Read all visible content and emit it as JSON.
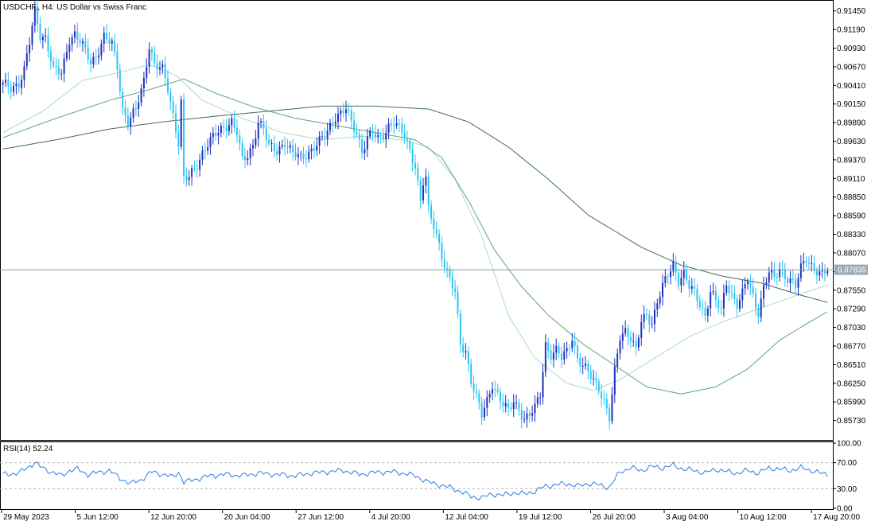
{
  "header": {
    "symbol_label": "USDCHF., H4:  US Dollar vs Swiss Franc"
  },
  "indicator": {
    "label": "RSI(14) 52.24"
  },
  "current_price_label": "0.87835",
  "colors": {
    "bull_candle": "#1e2fbf",
    "bear_candle": "#29c5f6",
    "ma_fast": "#a8dcc4",
    "ma_medium": "#5fa378",
    "ma_slow": "#3e6e52",
    "rsi_line": "#2a7fe0",
    "price_line": "#7fa5a0",
    "price_label_bg": "#9aa9b6"
  },
  "chart_data": [
    {
      "type": "candlestick",
      "symbol": "USDCHF.",
      "timeframe": "H4",
      "ylim": [
        0.8547,
        0.9158
      ],
      "y_ticks": [
        "0.91450",
        "0.91190",
        "0.90930",
        "0.90670",
        "0.90410",
        "0.90150",
        "0.89890",
        "0.89630",
        "0.89370",
        "0.89110",
        "0.88850",
        "0.88590",
        "0.88330",
        "0.88070",
        "0.87810",
        "0.87550",
        "0.87290",
        "0.87030",
        "0.86770",
        "0.86510",
        "0.86250",
        "0.85990",
        "0.85730"
      ],
      "x_ticks": [
        {
          "label": "29 May 2023",
          "pos": 0.0
        },
        {
          "label": "5 Jun 12:00",
          "pos": 0.089
        },
        {
          "label": "12 Jun 20:00",
          "pos": 0.178
        },
        {
          "label": "20 Jun 04:00",
          "pos": 0.267
        },
        {
          "label": "27 Jun 12:00",
          "pos": 0.356
        },
        {
          "label": "4 Jul 20:00",
          "pos": 0.445
        },
        {
          "label": "12 Jul 04:00",
          "pos": 0.534
        },
        {
          "label": "19 Jul 12:00",
          "pos": 0.623
        },
        {
          "label": "26 Jul 20:00",
          "pos": 0.712
        },
        {
          "label": "3 Aug 04:00",
          "pos": 0.801
        },
        {
          "label": "10 Aug 12:00",
          "pos": 0.89
        },
        {
          "label": "17 Aug 20:00",
          "pos": 0.979
        }
      ],
      "current_price": 0.87835,
      "close_anchors": [
        [
          0,
          0.9042
        ],
        [
          3,
          0.9038
        ],
        [
          6,
          0.9044
        ],
        [
          8,
          0.9062
        ],
        [
          10,
          0.91
        ],
        [
          12,
          0.9145
        ],
        [
          14,
          0.9112
        ],
        [
          16,
          0.9108
        ],
        [
          19,
          0.9062
        ],
        [
          22,
          0.9058
        ],
        [
          25,
          0.9106
        ],
        [
          27,
          0.9112
        ],
        [
          30,
          0.9096
        ],
        [
          33,
          0.9074
        ],
        [
          35,
          0.9082
        ],
        [
          38,
          0.9108
        ],
        [
          41,
          0.9098
        ],
        [
          43,
          0.9068
        ],
        [
          45,
          0.9008
        ],
        [
          47,
          0.899
        ],
        [
          50,
          0.9006
        ],
        [
          53,
          0.9048
        ],
        [
          55,
          0.9098
        ],
        [
          57,
          0.907
        ],
        [
          60,
          0.9062
        ],
        [
          62,
          0.9036
        ],
        [
          64,
          0.9
        ],
        [
          66,
          0.8962
        ],
        [
          67,
          0.9018
        ],
        [
          68,
          0.891
        ],
        [
          70,
          0.8912
        ],
        [
          73,
          0.893
        ],
        [
          75,
          0.8948
        ],
        [
          77,
          0.896
        ],
        [
          80,
          0.8972
        ],
        [
          83,
          0.8982
        ],
        [
          86,
          0.8992
        ],
        [
          88,
          0.8975
        ],
        [
          90,
          0.8935
        ],
        [
          92,
          0.8942
        ],
        [
          94,
          0.8958
        ],
        [
          96,
          0.8992
        ],
        [
          98,
          0.898
        ],
        [
          100,
          0.8955
        ],
        [
          103,
          0.895
        ],
        [
          106,
          0.8962
        ],
        [
          109,
          0.8945
        ],
        [
          112,
          0.894
        ],
        [
          115,
          0.8948
        ],
        [
          118,
          0.8958
        ],
        [
          121,
          0.897
        ],
        [
          123,
          0.8985
        ],
        [
          125,
          0.8998
        ],
        [
          127,
          0.9002
        ],
        [
          129,
          0.9008
        ],
        [
          131,
          0.8988
        ],
        [
          133,
          0.8975
        ],
        [
          135,
          0.895
        ],
        [
          137,
          0.8968
        ],
        [
          139,
          0.8975
        ],
        [
          141,
          0.8965
        ],
        [
          143,
          0.8972
        ],
        [
          145,
          0.8985
        ],
        [
          147,
          0.899
        ],
        [
          149,
          0.898
        ],
        [
          151,
          0.897
        ],
        [
          153,
          0.895
        ],
        [
          155,
          0.893
        ],
        [
          157,
          0.888
        ],
        [
          158,
          0.8905
        ],
        [
          159,
          0.891
        ],
        [
          160,
          0.8865
        ],
        [
          162,
          0.8845
        ],
        [
          164,
          0.882
        ],
        [
          166,
          0.879
        ],
        [
          168,
          0.877
        ],
        [
          170,
          0.875
        ],
        [
          172,
          0.868
        ],
        [
          174,
          0.867
        ],
        [
          176,
          0.863
        ],
        [
          178,
          0.8605
        ],
        [
          180,
          0.858
        ],
        [
          182,
          0.86
        ],
        [
          184,
          0.8625
        ],
        [
          186,
          0.861
        ],
        [
          188,
          0.8595
        ],
        [
          190,
          0.8585
        ],
        [
          192,
          0.86
        ],
        [
          194,
          0.859
        ],
        [
          196,
          0.8575
        ],
        [
          198,
          0.858
        ],
        [
          200,
          0.859
        ],
        [
          202,
          0.861
        ],
        [
          204,
          0.868
        ],
        [
          206,
          0.8665
        ],
        [
          208,
          0.867
        ],
        [
          210,
          0.866
        ],
        [
          212,
          0.867
        ],
        [
          214,
          0.869
        ],
        [
          216,
          0.866
        ],
        [
          218,
          0.8648
        ],
        [
          220,
          0.864
        ],
        [
          222,
          0.863
        ],
        [
          224,
          0.862
        ],
        [
          226,
          0.86
        ],
        [
          228,
          0.8575
        ],
        [
          230,
          0.864
        ],
        [
          232,
          0.869
        ],
        [
          234,
          0.87
        ],
        [
          236,
          0.869
        ],
        [
          238,
          0.867
        ],
        [
          240,
          0.871
        ],
        [
          242,
          0.872
        ],
        [
          244,
          0.871
        ],
        [
          246,
          0.874
        ],
        [
          248,
          0.876
        ],
        [
          250,
          0.8775
        ],
        [
          252,
          0.879
        ],
        [
          254,
          0.877
        ],
        [
          256,
          0.878
        ],
        [
          258,
          0.876
        ],
        [
          260,
          0.875
        ],
        [
          262,
          0.8735
        ],
        [
          264,
          0.872
        ],
        [
          266,
          0.8755
        ],
        [
          268,
          0.874
        ],
        [
          270,
          0.8725
        ],
        [
          272,
          0.8765
        ],
        [
          274,
          0.875
        ],
        [
          276,
          0.8735
        ],
        [
          278,
          0.875
        ],
        [
          280,
          0.877
        ],
        [
          282,
          0.8745
        ],
        [
          284,
          0.8725
        ],
        [
          286,
          0.876
        ],
        [
          288,
          0.878
        ],
        [
          290,
          0.877
        ],
        [
          292,
          0.8785
        ],
        [
          294,
          0.8775
        ],
        [
          296,
          0.877
        ],
        [
          298,
          0.876
        ],
        [
          300,
          0.8785
        ],
        [
          302,
          0.88
        ],
        [
          304,
          0.879
        ],
        [
          306,
          0.8782
        ],
        [
          308,
          0.8775
        ],
        [
          310,
          0.8783
        ]
      ],
      "candle_count": 311,
      "moving_averages": [
        {
          "kind": "fast",
          "color_key": "ma_fast",
          "points": [
            [
              0,
              0.8975
            ],
            [
              15,
              0.9005
            ],
            [
              30,
              0.9048
            ],
            [
              45,
              0.906
            ],
            [
              55,
              0.907
            ],
            [
              65,
              0.9055
            ],
            [
              75,
              0.902
            ],
            [
              90,
              0.8995
            ],
            [
              105,
              0.8975
            ],
            [
              120,
              0.8965
            ],
            [
              135,
              0.897
            ],
            [
              150,
              0.8965
            ],
            [
              160,
              0.8955
            ],
            [
              170,
              0.891
            ],
            [
              180,
              0.883
            ],
            [
              190,
              0.872
            ],
            [
              200,
              0.866
            ],
            [
              212,
              0.8625
            ],
            [
              222,
              0.8615
            ],
            [
              232,
              0.863
            ],
            [
              245,
              0.866
            ],
            [
              258,
              0.869
            ],
            [
              270,
              0.871
            ],
            [
              285,
              0.873
            ],
            [
              300,
              0.875
            ],
            [
              310,
              0.8762
            ]
          ]
        },
        {
          "kind": "medium",
          "color_key": "ma_medium",
          "points": [
            [
              0,
              0.8968
            ],
            [
              20,
              0.8995
            ],
            [
              40,
              0.902
            ],
            [
              55,
              0.9035
            ],
            [
              68,
              0.905
            ],
            [
              80,
              0.903
            ],
            [
              95,
              0.901
            ],
            [
              110,
              0.8995
            ],
            [
              125,
              0.8985
            ],
            [
              140,
              0.8975
            ],
            [
              155,
              0.8965
            ],
            [
              165,
              0.894
            ],
            [
              175,
              0.888
            ],
            [
              185,
              0.881
            ],
            [
              195,
              0.876
            ],
            [
              205,
              0.872
            ],
            [
              218,
              0.868
            ],
            [
              230,
              0.865
            ],
            [
              242,
              0.862
            ],
            [
              255,
              0.861
            ],
            [
              268,
              0.862
            ],
            [
              280,
              0.8645
            ],
            [
              292,
              0.8685
            ],
            [
              303,
              0.871
            ],
            [
              310,
              0.8725
            ]
          ]
        },
        {
          "kind": "slow",
          "color_key": "ma_slow",
          "points": [
            [
              0,
              0.8952
            ],
            [
              20,
              0.8965
            ],
            [
              40,
              0.898
            ],
            [
              60,
              0.899
            ],
            [
              80,
              0.8998
            ],
            [
              100,
              0.9005
            ],
            [
              120,
              0.9012
            ],
            [
              140,
              0.9012
            ],
            [
              160,
              0.9008
            ],
            [
              175,
              0.899
            ],
            [
              190,
              0.8955
            ],
            [
              205,
              0.891
            ],
            [
              220,
              0.886
            ],
            [
              240,
              0.8815
            ],
            [
              255,
              0.879
            ],
            [
              270,
              0.8775
            ],
            [
              285,
              0.8765
            ],
            [
              300,
              0.8748
            ],
            [
              310,
              0.8738
            ]
          ]
        }
      ]
    },
    {
      "type": "line",
      "name": "RSI(14)",
      "ylim": [
        0,
        100
      ],
      "y_ticks": [
        "100.00",
        "70.00",
        "30.00",
        "0.00"
      ],
      "levels": [
        70,
        30
      ],
      "points": [
        [
          0,
          52
        ],
        [
          6,
          54
        ],
        [
          9,
          62
        ],
        [
          12,
          70
        ],
        [
          14,
          64
        ],
        [
          18,
          56
        ],
        [
          22,
          50
        ],
        [
          25,
          58
        ],
        [
          28,
          60
        ],
        [
          32,
          52
        ],
        [
          36,
          55
        ],
        [
          40,
          58
        ],
        [
          44,
          46
        ],
        [
          48,
          38
        ],
        [
          52,
          44
        ],
        [
          56,
          56
        ],
        [
          60,
          52
        ],
        [
          64,
          48
        ],
        [
          66,
          56
        ],
        [
          68,
          40
        ],
        [
          72,
          44
        ],
        [
          78,
          50
        ],
        [
          84,
          52
        ],
        [
          90,
          50
        ],
        [
          96,
          54
        ],
        [
          102,
          52
        ],
        [
          110,
          50
        ],
        [
          116,
          54
        ],
        [
          122,
          56
        ],
        [
          128,
          58
        ],
        [
          134,
          52
        ],
        [
          140,
          55
        ],
        [
          146,
          56
        ],
        [
          152,
          53
        ],
        [
          156,
          48
        ],
        [
          160,
          40
        ],
        [
          164,
          36
        ],
        [
          168,
          32
        ],
        [
          172,
          26
        ],
        [
          176,
          18
        ],
        [
          180,
          16
        ],
        [
          184,
          22
        ],
        [
          188,
          20
        ],
        [
          192,
          24
        ],
        [
          196,
          22
        ],
        [
          200,
          26
        ],
        [
          204,
          34
        ],
        [
          208,
          36
        ],
        [
          212,
          38
        ],
        [
          216,
          34
        ],
        [
          220,
          38
        ],
        [
          224,
          36
        ],
        [
          228,
          32
        ],
        [
          232,
          56
        ],
        [
          236,
          62
        ],
        [
          240,
          58
        ],
        [
          244,
          64
        ],
        [
          248,
          62
        ],
        [
          252,
          66
        ],
        [
          256,
          60
        ],
        [
          260,
          58
        ],
        [
          264,
          54
        ],
        [
          268,
          60
        ],
        [
          272,
          56
        ],
        [
          276,
          54
        ],
        [
          280,
          58
        ],
        [
          284,
          54
        ],
        [
          288,
          62
        ],
        [
          292,
          60
        ],
        [
          296,
          58
        ],
        [
          300,
          62
        ],
        [
          304,
          58
        ],
        [
          308,
          53
        ],
        [
          310,
          52.24
        ]
      ]
    }
  ]
}
